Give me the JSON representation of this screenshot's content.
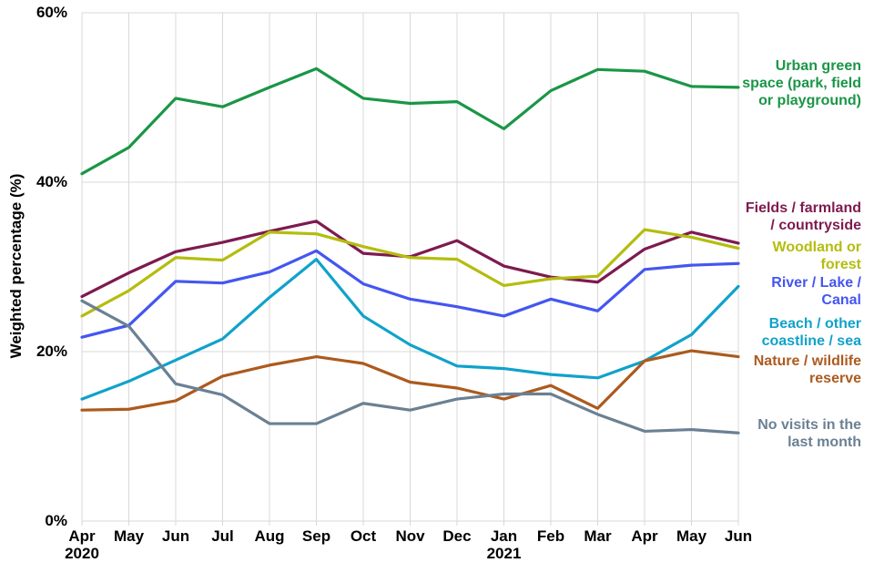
{
  "chart_data": {
    "type": "line",
    "title": "",
    "xlabel": "",
    "ylabel": "Weighted percentage (%)",
    "ylim": [
      0,
      60
    ],
    "grid": "both",
    "gridline_color": "#d9d9d9",
    "legend_position": "right",
    "background_color": "#ffffff",
    "yticks": [
      {
        "value": 0,
        "label": "0%"
      },
      {
        "value": 20,
        "label": "20%"
      },
      {
        "value": 40,
        "label": "40%"
      },
      {
        "value": 60,
        "label": "60%"
      }
    ],
    "categories": [
      "Apr",
      "May",
      "Jun",
      "Jul",
      "Aug",
      "Sep",
      "Oct",
      "Nov",
      "Dec",
      "Jan",
      "Feb",
      "Mar",
      "Apr",
      "May",
      "Jun"
    ],
    "year_labels": [
      {
        "index": 0,
        "label": "2020"
      },
      {
        "index": 9,
        "label": "2021"
      }
    ],
    "series": [
      {
        "name": "Urban green space (park, field or playground)",
        "label_lines": [
          "Urban green",
          "space (park, field",
          "or playground)"
        ],
        "color": "#1a9646",
        "values": [
          41.0,
          44.1,
          49.9,
          48.9,
          51.2,
          53.4,
          49.9,
          49.3,
          49.5,
          46.3,
          50.8,
          53.3,
          53.1,
          51.3,
          51.2
        ]
      },
      {
        "name": "Fields / farmland / countryside",
        "label_lines": [
          "Fields / farmland",
          "/ countryside"
        ],
        "color": "#7e1a4f",
        "values": [
          26.5,
          29.3,
          31.8,
          32.9,
          34.2,
          35.4,
          31.6,
          31.2,
          33.1,
          30.1,
          28.8,
          28.2,
          32.1,
          34.1,
          32.8
        ]
      },
      {
        "name": "Woodland or forest",
        "label_lines": [
          "Woodland or",
          "forest"
        ],
        "color": "#b4bd0e",
        "values": [
          24.2,
          27.2,
          31.1,
          30.8,
          34.1,
          33.9,
          32.4,
          31.1,
          30.9,
          27.8,
          28.6,
          28.9,
          34.4,
          33.5,
          32.2
        ]
      },
      {
        "name": "River / Lake / Canal",
        "label_lines": [
          "River / Lake /",
          "Canal"
        ],
        "color": "#4456f0",
        "values": [
          21.7,
          23.1,
          28.3,
          28.1,
          29.4,
          31.9,
          28.0,
          26.2,
          25.3,
          24.2,
          26.2,
          24.8,
          29.7,
          30.2,
          30.4
        ]
      },
      {
        "name": "Beach / other coastline / sea",
        "label_lines": [
          "Beach / other",
          "coastline / sea"
        ],
        "color": "#10a2ca",
        "values": [
          14.4,
          16.5,
          19.0,
          21.5,
          26.4,
          30.9,
          24.2,
          20.8,
          18.3,
          18.0,
          17.3,
          16.9,
          18.9,
          22.0,
          27.7
        ]
      },
      {
        "name": "Nature / wildlife reserve",
        "label_lines": [
          "Nature / wildlife",
          "reserve"
        ],
        "color": "#ac5a1e",
        "values": [
          13.1,
          13.2,
          14.2,
          17.1,
          18.4,
          19.4,
          18.6,
          16.4,
          15.7,
          14.4,
          16.0,
          13.3,
          18.9,
          20.1,
          19.4
        ]
      },
      {
        "name": "No visits in the last month",
        "label_lines": [
          "No visits in the",
          "last month"
        ],
        "color": "#6b8093",
        "values": [
          26.0,
          23.0,
          16.2,
          14.9,
          11.5,
          11.5,
          13.9,
          13.1,
          14.4,
          15.0,
          15.0,
          12.6,
          10.6,
          10.8,
          10.4
        ]
      }
    ]
  }
}
